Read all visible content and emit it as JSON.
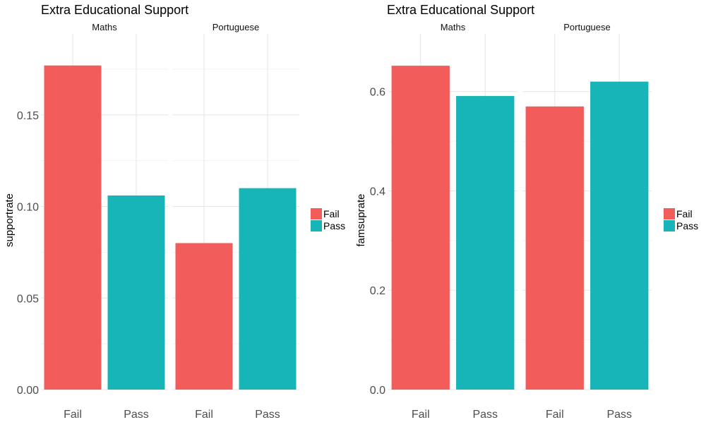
{
  "chart_data": [
    {
      "type": "bar",
      "title": "Extra Educational Support",
      "ylabel": "supportrate",
      "xlabel": "",
      "facets": [
        "Maths",
        "Portuguese"
      ],
      "categories": [
        "Fail",
        "Pass"
      ],
      "series": [
        {
          "facet": "Maths",
          "values": [
            0.177,
            0.106
          ]
        },
        {
          "facet": "Portuguese",
          "values": [
            0.08,
            0.11
          ]
        }
      ],
      "yticks": [
        0.0,
        0.05,
        0.1,
        0.15
      ],
      "ytick_labels": [
        "0.00",
        "0.05",
        "0.10",
        "0.15"
      ],
      "ylim": [
        0,
        0.185
      ],
      "legend": {
        "entries": [
          "Fail",
          "Pass"
        ],
        "position": "right"
      },
      "grid": true
    },
    {
      "type": "bar",
      "title": "Extra Educational Support",
      "ylabel": "famsuprate",
      "xlabel": "",
      "facets": [
        "Maths",
        "Portuguese"
      ],
      "categories": [
        "Fail",
        "Pass"
      ],
      "series": [
        {
          "facet": "Maths",
          "values": [
            0.652,
            0.591
          ]
        },
        {
          "facet": "Portuguese",
          "values": [
            0.57,
            0.62
          ]
        }
      ],
      "yticks": [
        0.0,
        0.2,
        0.4,
        0.6
      ],
      "ytick_labels": [
        "0.0",
        "0.2",
        "0.4",
        "0.6"
      ],
      "ylim": [
        0,
        0.682
      ],
      "legend": {
        "entries": [
          "Fail",
          "Pass"
        ],
        "position": "right"
      },
      "grid": true
    }
  ],
  "colors": {
    "Fail": "#F25C5A",
    "Pass": "#17B4B8",
    "grid_major": "#E6E6E6",
    "grid_minor": "#F2F2F2",
    "text": "#222222",
    "tick_text": "#4D4D4D"
  }
}
